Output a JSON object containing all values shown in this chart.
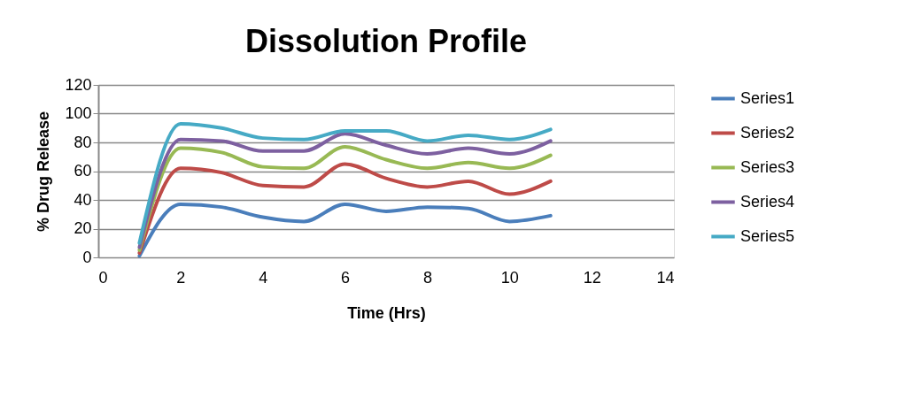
{
  "chart_data": {
    "type": "line",
    "title": "Dissolution Profile",
    "xlabel": "Time (Hrs)",
    "ylabel": "% Drug Release",
    "x": [
      1,
      2,
      3,
      4,
      5,
      6,
      7,
      8,
      9,
      10,
      11
    ],
    "series": [
      {
        "name": "Series1",
        "color": "#4a7ebb",
        "values": [
          1,
          37,
          35,
          28,
          25,
          37,
          32,
          35,
          34,
          25,
          29
        ]
      },
      {
        "name": "Series2",
        "color": "#be4b48",
        "values": [
          3,
          62,
          59,
          50,
          49,
          65,
          55,
          49,
          53,
          44,
          53
        ]
      },
      {
        "name": "Series3",
        "color": "#98b954",
        "values": [
          5,
          76,
          73,
          63,
          62,
          77,
          68,
          62,
          66,
          62,
          71
        ]
      },
      {
        "name": "Series4",
        "color": "#7d60a0",
        "values": [
          7,
          82,
          81,
          74,
          74,
          86,
          78,
          72,
          76,
          72,
          81
        ]
      },
      {
        "name": "Series5",
        "color": "#46aac5",
        "values": [
          10,
          93,
          90,
          83,
          82,
          88,
          88,
          81,
          85,
          82,
          89
        ]
      }
    ],
    "xlim": [
      0,
      14
    ],
    "xticks": [
      0,
      2,
      4,
      6,
      8,
      10,
      12,
      14
    ],
    "ylim": [
      0,
      120
    ],
    "yticks": [
      0,
      20,
      40,
      60,
      80,
      100,
      120
    ],
    "grid": "y",
    "legend": "right",
    "marker": "none",
    "line_style": "solid"
  }
}
